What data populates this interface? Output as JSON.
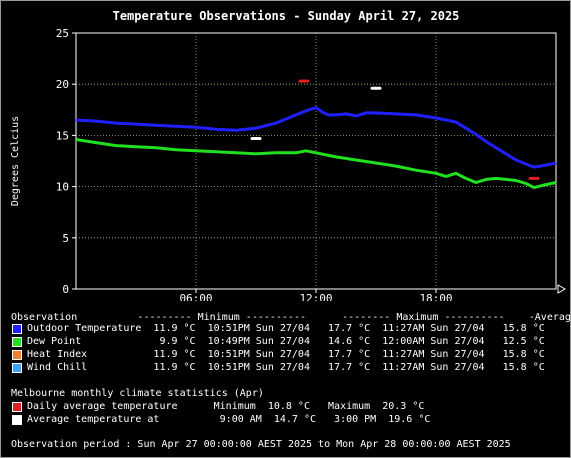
{
  "title": "Temperature Observations - Sunday April 27, 2025",
  "chart_data": {
    "type": "line",
    "title": "Temperature Observations - Sunday April 27, 2025",
    "ylabel": "Degrees Celcius",
    "xlabel": "",
    "x_unit": "hours since 00:00",
    "xlim": [
      0,
      24
    ],
    "ylim": [
      0,
      25
    ],
    "x_ticks": [
      {
        "x": 6,
        "label": "06:00"
      },
      {
        "x": 12,
        "label": "12:00"
      },
      {
        "x": 18,
        "label": "18:00"
      }
    ],
    "y_ticks": [
      0,
      5,
      10,
      15,
      20,
      25
    ],
    "grid": true,
    "series": [
      {
        "name": "Outdoor Temperature",
        "color": "#2020ff",
        "x": [
          0,
          1,
          2,
          3,
          4,
          5,
          6,
          7,
          8,
          9,
          10,
          10.5,
          11,
          11.5,
          11.8,
          12,
          12.3,
          12.6,
          13,
          13.5,
          14,
          14.5,
          15,
          16,
          17,
          18,
          18.5,
          19,
          19.5,
          20,
          20.5,
          21,
          21.5,
          22,
          22.5,
          22.9,
          23.5,
          24
        ],
        "y": [
          16.5,
          16.4,
          16.2,
          16.1,
          16.0,
          15.9,
          15.8,
          15.6,
          15.5,
          15.7,
          16.2,
          16.6,
          17.0,
          17.4,
          17.6,
          17.7,
          17.3,
          17.0,
          17.0,
          17.1,
          16.9,
          17.2,
          17.2,
          17.1,
          17.0,
          16.7,
          16.5,
          16.3,
          15.7,
          15.1,
          14.4,
          13.8,
          13.2,
          12.6,
          12.2,
          11.9,
          12.1,
          12.3
        ]
      },
      {
        "name": "Dew Point",
        "color": "#20e020",
        "x": [
          0,
          1,
          2,
          3,
          4,
          5,
          6,
          7,
          8,
          9,
          10,
          11,
          11.5,
          12,
          12.5,
          13,
          14,
          15,
          16,
          17,
          18,
          18.5,
          19,
          19.5,
          20,
          20.5,
          21,
          21.5,
          22,
          22.5,
          22.9,
          23.5,
          24
        ],
        "y": [
          14.6,
          14.3,
          14.0,
          13.9,
          13.8,
          13.6,
          13.5,
          13.4,
          13.3,
          13.2,
          13.3,
          13.3,
          13.5,
          13.3,
          13.1,
          12.9,
          12.6,
          12.3,
          12.0,
          11.6,
          11.3,
          11.0,
          11.3,
          10.8,
          10.4,
          10.7,
          10.8,
          10.7,
          10.6,
          10.3,
          9.9,
          10.2,
          10.4
        ]
      },
      {
        "name": "Heat Index",
        "color": "#f08030",
        "hidden_behind": "Outdoor Temperature"
      },
      {
        "name": "Wind Chill",
        "color": "#40a0f0",
        "hidden_behind": "Outdoor Temperature"
      }
    ],
    "markers": [
      {
        "name": "Daily average temperature",
        "kind": "dash",
        "color": "#e02020",
        "points": [
          {
            "x": 11.4,
            "y": 20.3
          },
          {
            "x": 22.9,
            "y": 10.8
          }
        ]
      },
      {
        "name": "Average temperature at",
        "kind": "dash",
        "color": "#ffffff",
        "points": [
          {
            "x": 9.0,
            "y": 14.7
          },
          {
            "x": 15.0,
            "y": 19.6
          }
        ]
      }
    ]
  },
  "stats": {
    "header": "Observation          --------- Minimum ----------      -------- Maximum ----------    -Average-",
    "rows": [
      {
        "color": "#2020ff",
        "text": "Outdoor Temperature  11.9 °C  10:51PM Sun 27/04   17.7 °C  11:27AM Sun 27/04   15.8 °C"
      },
      {
        "color": "#20e020",
        "text": "Dew Point             9.9 °C  10:49PM Sun 27/04   14.6 °C  12:00AM Sun 27/04   12.5 °C"
      },
      {
        "color": "#f08030",
        "text": "Heat Index           11.9 °C  10:51PM Sun 27/04   17.7 °C  11:27AM Sun 27/04   15.8 °C"
      },
      {
        "color": "#40a0f0",
        "text": "Wind Chill           11.9 °C  10:51PM Sun 27/04   17.7 °C  11:27AM Sun 27/04   15.8 °C"
      }
    ]
  },
  "climate": {
    "header": "Melbourne monthly climate statistics (Apr)",
    "rows": [
      {
        "color": "#e02020",
        "text": "Daily average temperature      Minimum  10.8 °C   Maximum  20.3 °C"
      },
      {
        "color": "#ffffff",
        "text": "Average temperature at          9:00 AM  14.7 °C   3:00 PM  19.6 °C"
      }
    ]
  },
  "footer": "Observation period : Sun Apr 27 00:00:00 AEST 2025 to Mon Apr 28 00:00:00 AEST 2025"
}
